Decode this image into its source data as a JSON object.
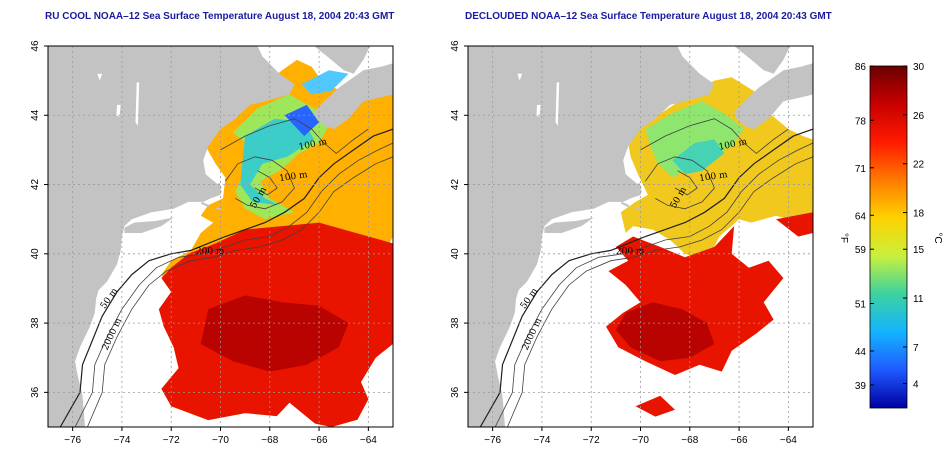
{
  "maps": [
    {
      "title": "RU COOL NOAA–12 Sea Surface Temperature August 18, 2004 20:43 GMT",
      "contour_labels": [
        "100 m",
        "100 m",
        "50 m",
        "200 m",
        "50 m",
        "2000 m"
      ],
      "mode": "cloudy"
    },
    {
      "title": "DECLOUDED NOAA–12 Sea Surface Temperature August 18, 2004 20:43 GMT",
      "contour_labels": [
        "100 m",
        "100 m",
        "50 m",
        "200 m",
        "50 m",
        "2000 m"
      ],
      "mode": "declouded"
    }
  ],
  "lon_ticks": [
    "−76",
    "−74",
    "−72",
    "−70",
    "−68",
    "−66",
    "−64"
  ],
  "lat_ticks": [
    "36",
    "38",
    "40",
    "42",
    "44",
    "46"
  ],
  "colorbar": {
    "f_ticks": [
      "86",
      "78",
      "71",
      "64",
      "59",
      "51",
      "44",
      "39"
    ],
    "c_ticks": [
      "30",
      "26",
      "22",
      "18",
      "15",
      "11",
      "7",
      "4"
    ],
    "f_unit": "°F",
    "c_unit": "°C",
    "colors": [
      "#6a0000",
      "#c80000",
      "#ff1a00",
      "#ff7a00",
      "#ffd200",
      "#c8f03c",
      "#3cd2a0",
      "#14b4ff",
      "#1e5aff",
      "#0000a0"
    ]
  },
  "colors": {
    "land": "#c3c3c3",
    "title": "#1a1aa0"
  }
}
